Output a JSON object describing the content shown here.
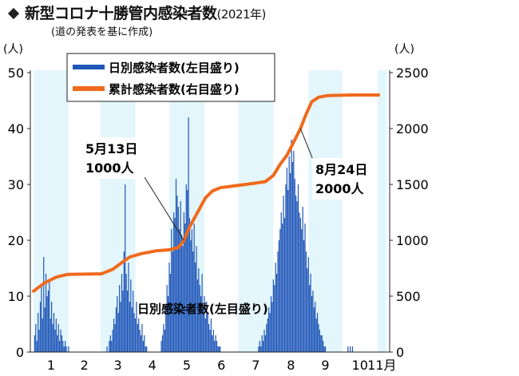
{
  "header": {
    "title": "新型コロナ十勝管内感染者数",
    "year": "(2021年)",
    "subtitle": "(道の発表を基に作成)"
  },
  "chart_data": {
    "type": "bar",
    "left_axis": {
      "unit_label": "(人)",
      "ylim": [
        0,
        50
      ],
      "ticks": [
        0,
        10,
        20,
        30,
        40,
        50
      ]
    },
    "right_axis": {
      "unit_label": "(人)",
      "ylim": [
        0,
        2500
      ],
      "ticks": [
        0,
        500,
        1000,
        1500,
        2000,
        2500
      ]
    },
    "x_axis": {
      "ticks": [
        "1",
        "2",
        "3",
        "4",
        "5",
        "6",
        "7",
        "8",
        "9",
        "10",
        "11月"
      ],
      "xlim_days": [
        0,
        312
      ]
    },
    "month_bands": "alternating light blue bands for odd months",
    "legend": {
      "position": "top",
      "entries": [
        {
          "label": "日別感染者数(左目盛り)",
          "color": "#1f56b8"
        },
        {
          "label": "累計感染者数(右目盛り)",
          "color": "#ef6a1c"
        }
      ]
    },
    "annotations": [
      {
        "line1": "5月13日",
        "line2": "1000人",
        "date_day": 133,
        "value": 1000
      },
      {
        "line1": "8月24日",
        "line2": "2000人",
        "date_day": 236,
        "value": 2000
      }
    ],
    "bar_label": "日別感染者数(左目盛り)",
    "series": [
      {
        "name": "日別感染者数(左目盛り)",
        "axis": "left",
        "color": "#1f56b8",
        "bursts": [
          {
            "from_day": 1,
            "to_day": 32,
            "values": [
              3,
              5,
              2,
              7,
              4,
              9,
              12,
              6,
              17,
              8,
              14,
              10,
              11,
              13,
              6,
              9,
              5,
              7,
              4,
              6,
              3,
              5,
              2,
              4,
              3,
              2,
              1,
              2,
              1,
              0,
              1,
              0
            ]
          },
          {
            "from_day": 65,
            "to_day": 100,
            "values": [
              1,
              0,
              2,
              3,
              2,
              4,
              6,
              5,
              8,
              10,
              7,
              12,
              9,
              14,
              11,
              18,
              30,
              14,
              11,
              16,
              9,
              13,
              8,
              11,
              7,
              6,
              9,
              5,
              6,
              4,
              3,
              5,
              2,
              3,
              1,
              1
            ]
          },
          {
            "from_day": 113,
            "to_day": 165,
            "values": [
              2,
              3,
              5,
              4,
              8,
              12,
              10,
              16,
              14,
              22,
              18,
              25,
              24,
              31,
              28,
              26,
              22,
              27,
              21,
              19,
              25,
              23,
              30,
              29,
              42,
              24,
              20,
              22,
              18,
              23,
              16,
              19,
              13,
              15,
              12,
              10,
              14,
              8,
              10,
              6,
              9,
              7,
              5,
              4,
              6,
              3,
              4,
              2,
              3,
              2,
              1,
              1,
              1
            ]
          },
          {
            "from_day": 199,
            "to_day": 258,
            "values": [
              1,
              2,
              1,
              3,
              2,
              4,
              3,
              5,
              6,
              8,
              7,
              10,
              9,
              13,
              12,
              16,
              14,
              18,
              20,
              22,
              25,
              23,
              28,
              24,
              30,
              33,
              29,
              35,
              32,
              38,
              34,
              36,
              31,
              28,
              27,
              30,
              25,
              24,
              22,
              26,
              20,
              23,
              18,
              15,
              17,
              12,
              14,
              10,
              11,
              8,
              9,
              6,
              7,
              5,
              4,
              3,
              3,
              2,
              1,
              1
            ]
          },
          {
            "from_day": 278,
            "to_day": 282,
            "values": [
              1,
              0,
              1,
              0,
              1
            ]
          }
        ]
      },
      {
        "name": "累計感染者数(右目盛り)",
        "axis": "right",
        "color": "#ef6a1c",
        "points": [
          {
            "day": 0,
            "value": 545
          },
          {
            "day": 10,
            "value": 620
          },
          {
            "day": 20,
            "value": 670
          },
          {
            "day": 30,
            "value": 695
          },
          {
            "day": 60,
            "value": 700
          },
          {
            "day": 70,
            "value": 740
          },
          {
            "day": 78,
            "value": 800
          },
          {
            "day": 85,
            "value": 850
          },
          {
            "day": 95,
            "value": 880
          },
          {
            "day": 108,
            "value": 905
          },
          {
            "day": 120,
            "value": 915
          },
          {
            "day": 128,
            "value": 935
          },
          {
            "day": 133,
            "value": 1000
          },
          {
            "day": 138,
            "value": 1120
          },
          {
            "day": 145,
            "value": 1250
          },
          {
            "day": 152,
            "value": 1380
          },
          {
            "day": 158,
            "value": 1440
          },
          {
            "day": 165,
            "value": 1470
          },
          {
            "day": 180,
            "value": 1490
          },
          {
            "day": 195,
            "value": 1510
          },
          {
            "day": 205,
            "value": 1525
          },
          {
            "day": 212,
            "value": 1580
          },
          {
            "day": 218,
            "value": 1680
          },
          {
            "day": 224,
            "value": 1760
          },
          {
            "day": 230,
            "value": 1880
          },
          {
            "day": 236,
            "value": 2000
          },
          {
            "day": 241,
            "value": 2130
          },
          {
            "day": 246,
            "value": 2240
          },
          {
            "day": 252,
            "value": 2280
          },
          {
            "day": 260,
            "value": 2295
          },
          {
            "day": 280,
            "value": 2300
          },
          {
            "day": 305,
            "value": 2300
          }
        ]
      }
    ]
  }
}
